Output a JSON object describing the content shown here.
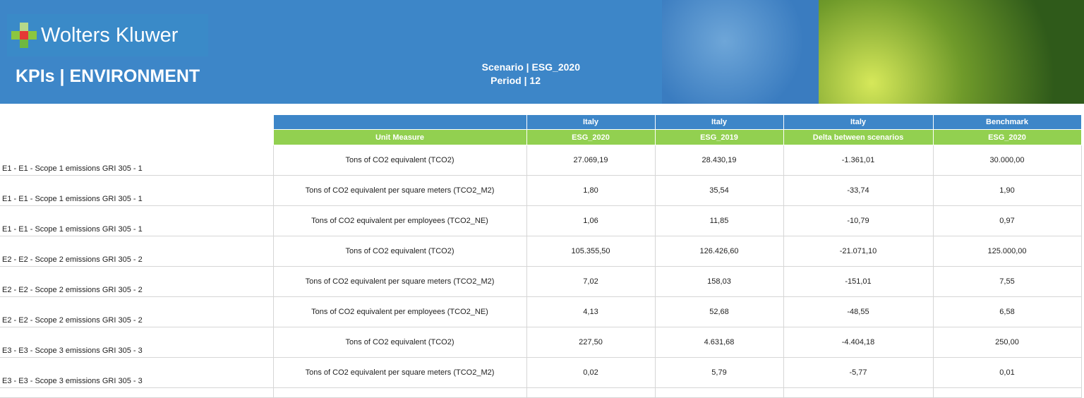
{
  "header": {
    "logo_text": "Wolters Kluwer",
    "title": "KPIs | ENVIRONMENT",
    "scenario": "Scenario | ESG_2020",
    "period": "Period | 12"
  },
  "table": {
    "header_row1": [
      "",
      "Italy",
      "Italy",
      "Italy",
      "Benchmark"
    ],
    "header_row2": [
      "Unit Measure",
      "ESG_2020",
      "ESG_2019",
      "Delta between scenarios",
      "ESG_2020"
    ],
    "rows": [
      {
        "kpi": "E1 - E1 - Scope 1 emissions GRI 305 - 1",
        "unit": "Tons of CO2 equivalent (TCO2)",
        "v": [
          "27.069,19",
          "28.430,19",
          "-1.361,01",
          "30.000,00"
        ]
      },
      {
        "kpi": "E1 - E1 - Scope 1 emissions GRI 305 - 1",
        "unit": "Tons of CO2 equivalent per square meters (TCO2_M2)",
        "v": [
          "1,80",
          "35,54",
          "-33,74",
          "1,90"
        ]
      },
      {
        "kpi": "E1 - E1 - Scope 1 emissions GRI 305 - 1",
        "unit": "Tons of CO2 equivalent per employees (TCO2_NE)",
        "v": [
          "1,06",
          "11,85",
          "-10,79",
          "0,97"
        ]
      },
      {
        "kpi": "E2 - E2 - Scope 2 emissions GRI 305 - 2",
        "unit": "Tons of CO2 equivalent (TCO2)",
        "v": [
          "105.355,50",
          "126.426,60",
          "-21.071,10",
          "125.000,00"
        ]
      },
      {
        "kpi": "E2 - E2 - Scope 2 emissions GRI 305 - 2",
        "unit": "Tons of CO2 equivalent per square meters (TCO2_M2)",
        "v": [
          "7,02",
          "158,03",
          "-151,01",
          "7,55"
        ]
      },
      {
        "kpi": "E2 - E2 - Scope 2 emissions GRI 305 - 2",
        "unit": "Tons of CO2 equivalent per employees (TCO2_NE)",
        "v": [
          "4,13",
          "52,68",
          "-48,55",
          "6,58"
        ]
      },
      {
        "kpi": "E3 - E3 - Scope 3 emissions GRI 305 - 3",
        "unit": "Tons of CO2 equivalent (TCO2)",
        "v": [
          "227,50",
          "4.631,68",
          "-4.404,18",
          "250,00"
        ]
      },
      {
        "kpi": "E3 - E3 - Scope 3 emissions GRI 305 - 3",
        "unit": "Tons of CO2 equivalent per square meters (TCO2_M2)",
        "v": [
          "0,02",
          "5,79",
          "-5,77",
          "0,01"
        ]
      }
    ]
  }
}
